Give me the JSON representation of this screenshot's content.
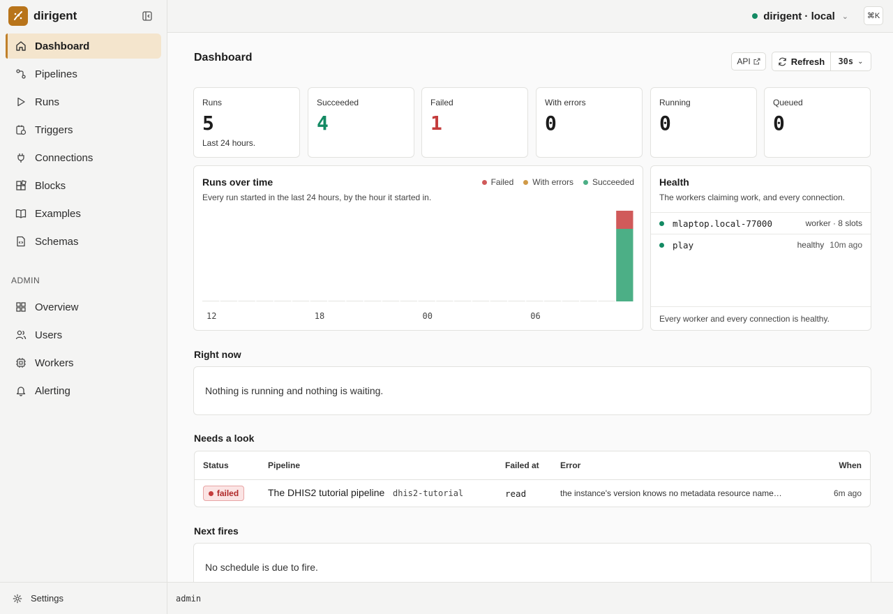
{
  "app": {
    "name": "dirigent"
  },
  "sidebar": {
    "items": [
      {
        "label": "Dashboard",
        "icon": "home-icon",
        "active": true
      },
      {
        "label": "Pipelines",
        "icon": "pipeline-icon"
      },
      {
        "label": "Runs",
        "icon": "play-icon"
      },
      {
        "label": "Triggers",
        "icon": "calendar-clock-icon"
      },
      {
        "label": "Connections",
        "icon": "plug-icon"
      },
      {
        "label": "Blocks",
        "icon": "blocks-icon"
      },
      {
        "label": "Examples",
        "icon": "book-icon"
      },
      {
        "label": "Schemas",
        "icon": "file-code-icon"
      }
    ],
    "admin_label": "ADMIN",
    "admin_items": [
      {
        "label": "Overview",
        "icon": "grid-icon"
      },
      {
        "label": "Users",
        "icon": "users-icon"
      },
      {
        "label": "Workers",
        "icon": "cpu-icon"
      },
      {
        "label": "Alerting",
        "icon": "bell-icon"
      }
    ],
    "settings_label": "Settings"
  },
  "topbar": {
    "environment": "dirigent · local",
    "env_status_color": "#138a63",
    "shortcut": "⌘K"
  },
  "page": {
    "title": "Dashboard",
    "api_label": "API",
    "refresh_label": "Refresh",
    "interval": "30s"
  },
  "stats": [
    {
      "label": "Runs",
      "value": "5",
      "sub": "Last 24 hours."
    },
    {
      "label": "Succeeded",
      "value": "4",
      "tone": "green"
    },
    {
      "label": "Failed",
      "value": "1",
      "tone": "red"
    },
    {
      "label": "With errors",
      "value": "0"
    },
    {
      "label": "Running",
      "value": "0"
    },
    {
      "label": "Queued",
      "value": "0"
    }
  ],
  "runs_chart": {
    "title": "Runs over time",
    "subtitle": "Every run started in the last 24 hours, by the hour it started in.",
    "legend": [
      {
        "label": "Failed",
        "color": "#d05a5a"
      },
      {
        "label": "With errors",
        "color": "#d09a48"
      },
      {
        "label": "Succeeded",
        "color": "#4caf86"
      }
    ]
  },
  "chart_data": {
    "type": "bar",
    "stacked": true,
    "categories": [
      "12",
      "13",
      "14",
      "15",
      "16",
      "17",
      "18",
      "19",
      "20",
      "21",
      "22",
      "23",
      "00",
      "01",
      "02",
      "03",
      "04",
      "05",
      "06",
      "07",
      "08",
      "09",
      "10",
      "11"
    ],
    "x_tick_labels": [
      "12",
      "18",
      "00",
      "06"
    ],
    "series": [
      {
        "name": "Succeeded",
        "values": [
          0,
          0,
          0,
          0,
          0,
          0,
          0,
          0,
          0,
          0,
          0,
          0,
          0,
          0,
          0,
          0,
          0,
          0,
          0,
          0,
          0,
          0,
          0,
          4
        ]
      },
      {
        "name": "With errors",
        "values": [
          0,
          0,
          0,
          0,
          0,
          0,
          0,
          0,
          0,
          0,
          0,
          0,
          0,
          0,
          0,
          0,
          0,
          0,
          0,
          0,
          0,
          0,
          0,
          0
        ]
      },
      {
        "name": "Failed",
        "values": [
          0,
          0,
          0,
          0,
          0,
          0,
          0,
          0,
          0,
          0,
          0,
          0,
          0,
          0,
          0,
          0,
          0,
          0,
          0,
          0,
          0,
          0,
          0,
          1
        ]
      }
    ],
    "ylim": [
      0,
      5
    ],
    "legend_position": "top-right",
    "grid": false
  },
  "health": {
    "title": "Health",
    "subtitle": "The workers claiming work, and every connection.",
    "rows": [
      {
        "name": "mlaptop.local-77000",
        "meta": "worker · 8 slots",
        "meta2": ""
      },
      {
        "name": "play",
        "meta": "healthy",
        "meta2": "10m ago"
      }
    ],
    "footer": "Every worker and every connection is healthy."
  },
  "right_now": {
    "title": "Right now",
    "message": "Nothing is running and nothing is waiting."
  },
  "needs_look": {
    "title": "Needs a look",
    "columns": [
      "Status",
      "Pipeline",
      "Failed at",
      "Error",
      "When"
    ],
    "rows": [
      {
        "status": "failed",
        "pipeline": "The DHIS2 tutorial pipeline",
        "slug": "dhis2-tutorial",
        "failed_at": "read",
        "error": "the instance's version knows no metadata resource name…",
        "when": "6m ago"
      }
    ]
  },
  "next_fires": {
    "title": "Next fires",
    "message": "No schedule is due to fire."
  },
  "statusbar": {
    "user": "admin"
  }
}
